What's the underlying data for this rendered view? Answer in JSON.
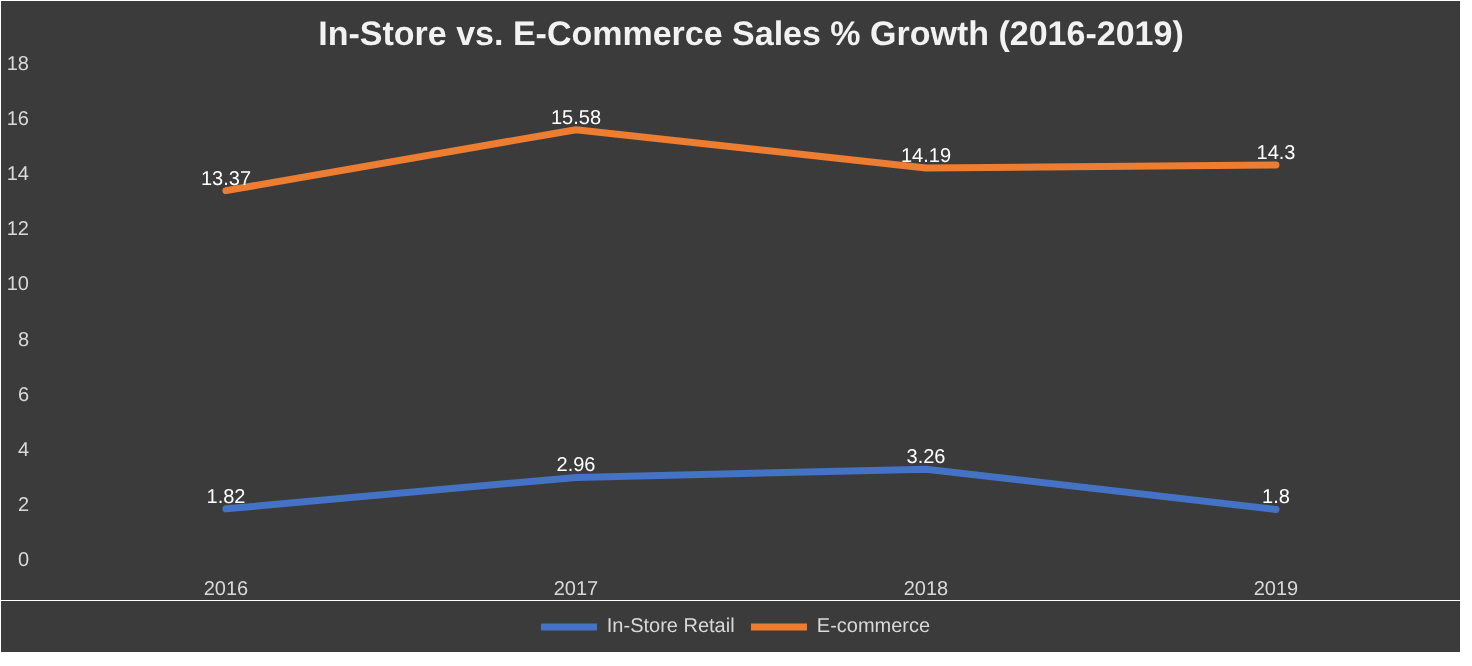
{
  "chart_data": {
    "type": "line",
    "title": "In-Store vs. E-Commerce Sales % Growth (2016-2019)",
    "categories": [
      "2016",
      "2017",
      "2018",
      "2019"
    ],
    "series": [
      {
        "name": "In-Store Retail",
        "color": "#4472c4",
        "values": [
          1.82,
          2.96,
          3.26,
          1.8
        ]
      },
      {
        "name": "E-commerce",
        "color": "#ed7d31",
        "values": [
          13.37,
          15.58,
          14.19,
          14.3
        ]
      }
    ],
    "ylim": [
      0,
      18
    ],
    "yticks": [
      0,
      2,
      4,
      6,
      8,
      10,
      12,
      14,
      16,
      18
    ],
    "data_labels": true,
    "legend": "bottom",
    "grid": false,
    "marker": "none",
    "line_style": "solid"
  }
}
